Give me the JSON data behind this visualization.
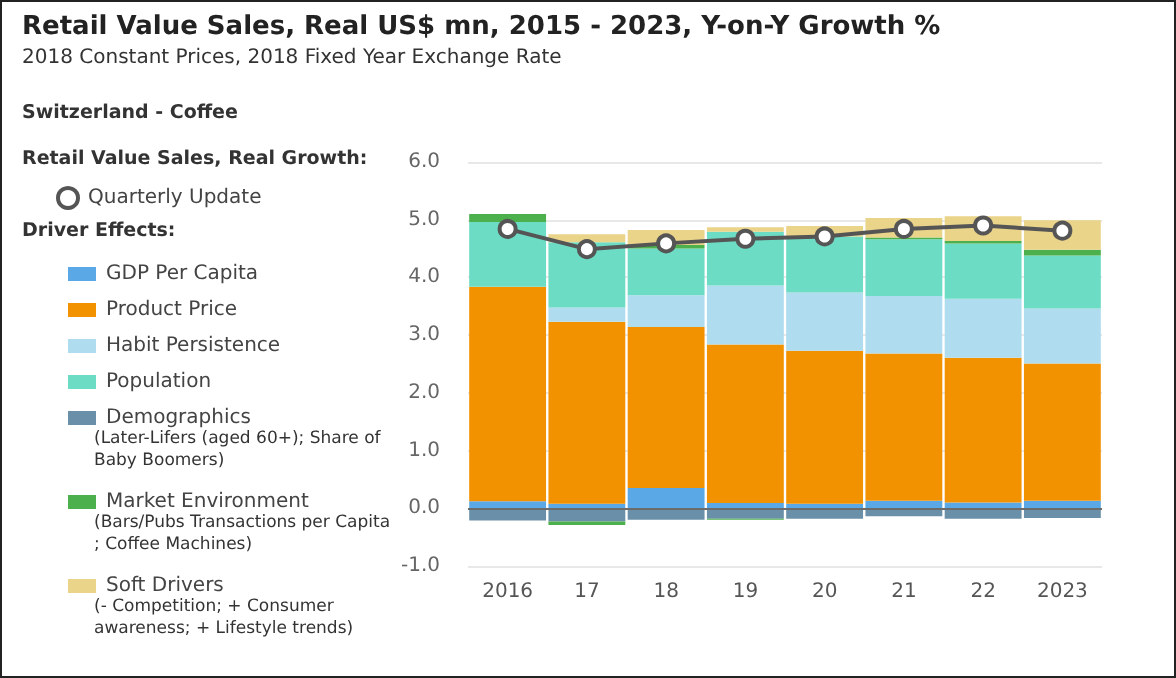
{
  "chart_data": {
    "type": "bar",
    "title": "Retail Value Sales, Real US$ mn, 2015 - 2023, Y-on-Y Growth %",
    "subtitle": "2018 Constant Prices, 2018 Fixed Year Exchange Rate",
    "annotations": [
      "Switzerland - Coffee",
      "Retail Value Sales, Real Growth:",
      "Driver Effects:",
      "(Later-Lifers (aged 60+); Share of Baby Boomers)",
      "(Bars/Pubs Transactions per Capita; Coffee Machines)",
      "(- Competition; + Consumer awareness; + Lifestyle trends)"
    ],
    "categories": [
      "2016",
      "17",
      "18",
      "19",
      "20",
      "21",
      "22",
      "2023"
    ],
    "stacked": true,
    "legend": "left",
    "grid": "y",
    "ylim": [
      -1,
      6
    ],
    "yticks": [
      {
        "value": -1,
        "label": "-1.0"
      },
      {
        "value": 0,
        "label": "0.0"
      },
      {
        "value": 1,
        "label": "1.0"
      },
      {
        "value": 2,
        "label": "2.0"
      },
      {
        "value": 3,
        "label": "3.0"
      },
      {
        "value": 4,
        "label": "4.0"
      },
      {
        "value": 5,
        "label": "5.0"
      },
      {
        "value": 6,
        "label": "6.0"
      }
    ],
    "ref_lines": [
      {
        "axis": "y",
        "value": 0,
        "color": "#6b6b6b"
      }
    ],
    "series": [
      {
        "type": "line",
        "name": "Quarterly Update",
        "color": "#555555",
        "marker": "circle",
        "values": [
          4.84,
          4.49,
          4.59,
          4.67,
          4.71,
          4.84,
          4.9,
          4.81
        ]
      },
      {
        "name": "GDP Per Capita",
        "color": "#5aa9e6",
        "values": [
          0.12,
          0.08,
          0.35,
          0.09,
          0.08,
          0.13,
          0.1,
          0.13
        ]
      },
      {
        "name": "Product Price",
        "color": "#f39200",
        "values": [
          3.72,
          3.15,
          2.79,
          2.75,
          2.65,
          2.55,
          2.51,
          2.38
        ]
      },
      {
        "name": "Habit Persistence",
        "color": "#b0dcf0",
        "values": [
          null,
          0.25,
          0.55,
          1.02,
          1.01,
          1.0,
          1.02,
          0.95
        ]
      },
      {
        "name": "Population",
        "color": "#6cdcc4",
        "values": [
          1.12,
          1.13,
          0.81,
          0.93,
          0.97,
          0.98,
          0.96,
          0.92
        ]
      },
      {
        "name": "Demographics",
        "color": "#6a8fa8",
        "values": [
          -0.21,
          -0.23,
          -0.2,
          -0.18,
          -0.18,
          -0.14,
          -0.18,
          -0.17
        ]
      },
      {
        "name": "Market Environment",
        "color": "#4cb04c",
        "values": [
          0.14,
          -0.06,
          0.06,
          -0.02,
          null,
          0.03,
          0.04,
          0.1
        ]
      },
      {
        "name": "Soft Drivers",
        "color": "#ead48a",
        "values": [
          null,
          0.14,
          0.26,
          0.08,
          0.18,
          0.34,
          0.43,
          0.51
        ]
      }
    ]
  }
}
